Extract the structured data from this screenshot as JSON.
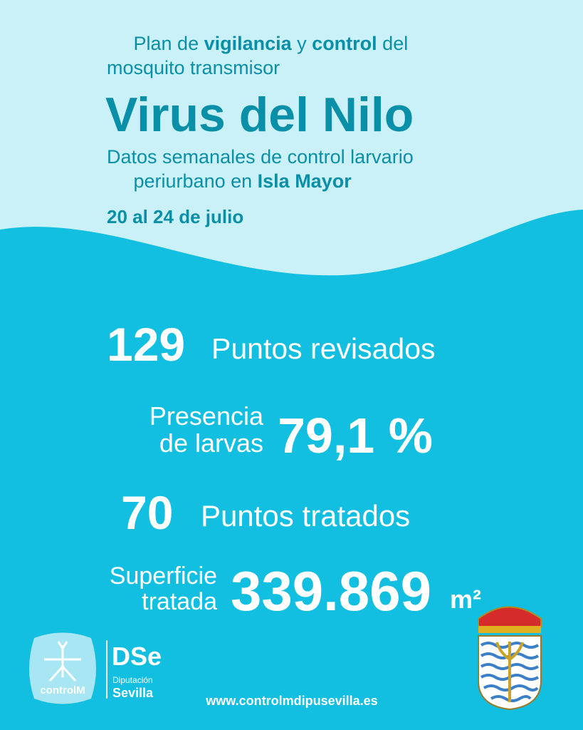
{
  "header": {
    "line1": [
      "Plan de ",
      "vigilancia",
      " y ",
      "control",
      " del"
    ],
    "line2": "mosquito transmisor",
    "title": "Virus del Nilo",
    "subtitle_line1": "Datos semanales de control larvario",
    "subtitle_line2": [
      "periurbano en ",
      "Isla Mayor"
    ],
    "date": "20 al 24 de julio"
  },
  "stats": {
    "points_checked": {
      "number": "129",
      "label": "Puntos revisados"
    },
    "larvae": {
      "label_line1": "Presencia",
      "label_line2": "de larvas",
      "number": "79,1 %"
    },
    "points_treated": {
      "number": "70",
      "label": "Puntos tratados"
    },
    "surface": {
      "label_line1": "Superficie",
      "label_line2": "tratada",
      "number": "339.869",
      "unit": "m²"
    }
  },
  "footer": {
    "logo_control": "controlM",
    "logo_dse": "DSe",
    "logo_diputacion": "Diputación",
    "logo_sevilla": "Sevilla",
    "url": "www.controlmdipusevilla.es"
  }
}
